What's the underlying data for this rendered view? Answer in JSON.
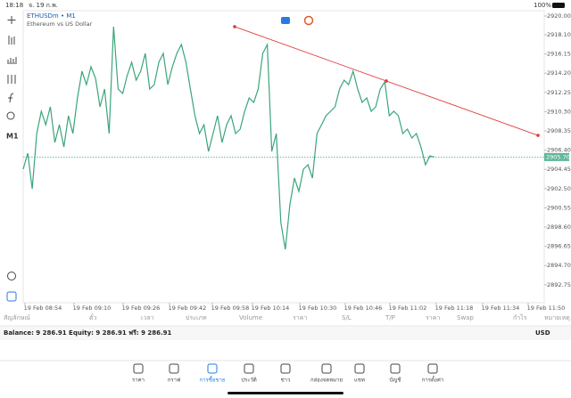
{
  "status_bar": {
    "time": "18:18",
    "date": "จ. 19 ก.พ.",
    "battery": "100%"
  },
  "toolbar": {
    "timeframe": "M1"
  },
  "chart_data": {
    "type": "line",
    "symbol": "ETHUSDm • M1",
    "description": "Ethereum vs US Dollar",
    "xticks": [
      "19 Feb 08:54",
      "19 Feb 09:10",
      "19 Feb 09:26",
      "19 Feb 09:42",
      "19 Feb 09:58",
      "19 Feb 10:14",
      "19 Feb 10:30",
      "19 Feb 10:46",
      "19 Feb 11:02",
      "19 Feb 11:18",
      "19 Feb 11:34",
      "19 Feb 11:50"
    ],
    "series": [
      {
        "color": "#3aa57a",
        "values": [
          2904.47,
          2906.09,
          2902.48,
          2908.08,
          2910.34,
          2908.98,
          2910.79,
          2907.18,
          2908.98,
          2906.73,
          2909.89,
          2908.08,
          2911.69,
          2914.4,
          2913.05,
          2914.85,
          2913.68,
          2910.79,
          2912.6,
          2908.08,
          2918.92,
          2912.6,
          2912.14,
          2913.95,
          2915.3,
          2913.5,
          2914.4,
          2916.21,
          2912.6,
          2913.05,
          2915.3,
          2916.21,
          2913.05,
          2914.85,
          2916.21,
          2917.11,
          2915.3,
          2912.6,
          2909.89,
          2908.08,
          2908.98,
          2906.27,
          2908.08,
          2909.89,
          2907.18,
          2908.98,
          2909.89,
          2908.08,
          2908.53,
          2910.34,
          2911.69,
          2911.24,
          2912.6,
          2916.21,
          2917.11,
          2906.27,
          2908.08,
          2899.05,
          2896.34,
          2900.86,
          2903.57,
          2902.21,
          2904.47,
          2904.92,
          2903.57,
          2908.08,
          2908.98,
          2909.89,
          2910.34,
          2910.79,
          2912.6,
          2913.5,
          2913.05,
          2914.4,
          2912.6,
          2911.24,
          2911.69,
          2910.34,
          2910.79,
          2912.6,
          2913.32,
          2909.89,
          2910.34,
          2909.89,
          2908.08,
          2908.53,
          2907.63,
          2908.08,
          2906.73,
          2904.92,
          2905.82,
          2905.7
        ]
      }
    ],
    "ylim": [
      2890.93,
      2920.54
    ],
    "yticks": [
      {
        "value": 2920.0,
        "label": "2920.00"
      },
      {
        "value": 2918.1,
        "label": "2918.10"
      },
      {
        "value": 2916.15,
        "label": "2916.15"
      },
      {
        "value": 2914.2,
        "label": "2914.20"
      },
      {
        "value": 2912.25,
        "label": "2912.25"
      },
      {
        "value": 2910.3,
        "label": "2910.30"
      },
      {
        "value": 2908.35,
        "label": "2908.35"
      },
      {
        "value": 2906.4,
        "label": "2906.40"
      },
      {
        "value": 2904.45,
        "label": "2904.45"
      },
      {
        "value": 2902.5,
        "label": "2902.50"
      },
      {
        "value": 2900.55,
        "label": "2900.55"
      },
      {
        "value": 2898.6,
        "label": "2898.60"
      },
      {
        "value": 2896.65,
        "label": "2896.65"
      },
      {
        "value": 2894.7,
        "label": "2894.70"
      },
      {
        "value": 2892.75,
        "label": "2892.75"
      }
    ],
    "current_price": {
      "value": 2905.7,
      "label": "2905.70"
    },
    "trendline": {
      "color": "#e03c3c",
      "values": [
        2918.92,
        2913.41,
        2907.9
      ]
    }
  },
  "table": {
    "headers": [
      "สัญลักษณ์",
      "ตั๋ว",
      "เวลา",
      "ประเภท",
      "Volume",
      "ราคา",
      "S/L",
      "T/P",
      "ราคา",
      "Swap",
      "กำไร",
      "หมายเหตุ"
    ]
  },
  "account": {
    "summary": "Balance: 9 286.91 Equity: 9 286.91 ฟรี: 9 286.91",
    "currency": "USD"
  },
  "tabs": [
    "ราคา",
    "กราฟ",
    "การซื้อขาย",
    "ประวัติ",
    "ข่าว",
    "กล่องจดหมาย",
    "แชท",
    "บัญชี",
    "การตั้งค่า"
  ],
  "active_tab": 2
}
